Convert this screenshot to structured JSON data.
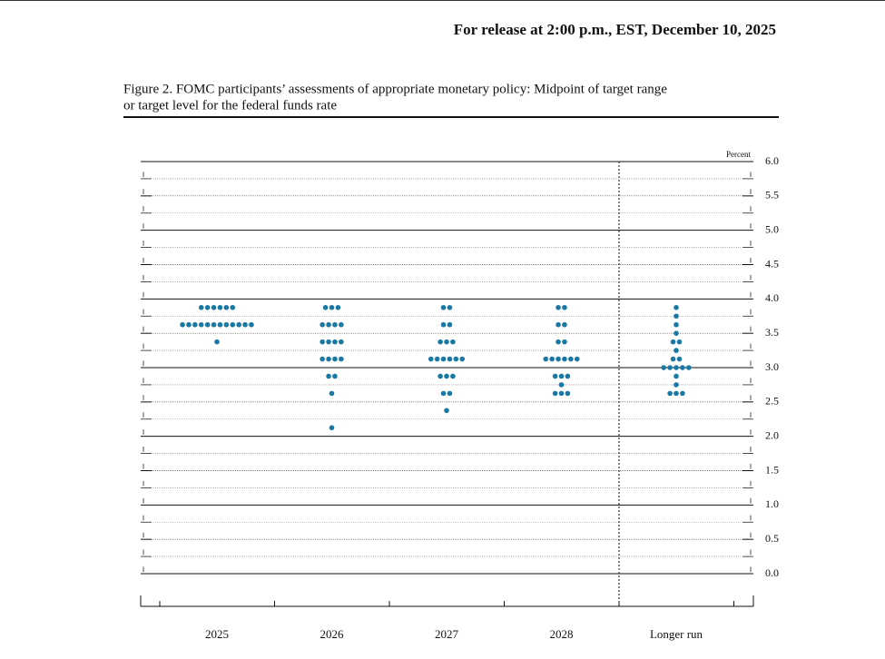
{
  "header": {
    "release": "For release at 2:00 p.m., EST, December 10, 2025"
  },
  "chart_data": {
    "type": "dot",
    "title": [
      "Figure 2. FOMC participants’ assessments of appropriate monetary policy: Midpoint of target range",
      "or target level for the federal funds rate"
    ],
    "y_label": "Percent",
    "ylim": [
      0,
      6
    ],
    "yticks": [
      {
        "value": 0,
        "label": "0.0"
      },
      0.5,
      {
        "value": 1,
        "label": "1.0"
      },
      1.5,
      {
        "value": 2,
        "label": "2.0"
      },
      2.5,
      {
        "value": 3,
        "label": "3.0"
      },
      3.5,
      {
        "value": 4,
        "label": "4.0"
      },
      4.5,
      {
        "value": 5,
        "label": "5.0"
      },
      5.5,
      {
        "value": 6,
        "label": "6.0"
      }
    ],
    "color": "#1a78a4",
    "grid": true,
    "categories": [
      "2025",
      "2026",
      "2027",
      "2028",
      "Longer run"
    ],
    "dots": [
      [
        {
          "rate": 3.875,
          "count": 6
        },
        {
          "rate": 3.625,
          "count": 12
        },
        {
          "rate": 3.375,
          "count": 1
        }
      ],
      [
        {
          "rate": 3.875,
          "count": 3
        },
        {
          "rate": 3.625,
          "count": 4
        },
        {
          "rate": 3.375,
          "count": 4
        },
        {
          "rate": 3.125,
          "count": 4
        },
        {
          "rate": 2.875,
          "count": 2
        },
        {
          "rate": 2.625,
          "count": 1
        },
        {
          "rate": 2.125,
          "count": 1
        }
      ],
      [
        {
          "rate": 3.875,
          "count": 2
        },
        {
          "rate": 3.625,
          "count": 2
        },
        {
          "rate": 3.375,
          "count": 3
        },
        {
          "rate": 3.125,
          "count": 6
        },
        {
          "rate": 2.875,
          "count": 3
        },
        {
          "rate": 2.625,
          "count": 2
        },
        {
          "rate": 2.375,
          "count": 1
        }
      ],
      [
        {
          "rate": 3.875,
          "count": 2
        },
        {
          "rate": 3.625,
          "count": 2
        },
        {
          "rate": 3.375,
          "count": 2
        },
        {
          "rate": 3.125,
          "count": 6
        },
        {
          "rate": 2.875,
          "count": 3
        },
        {
          "rate": 2.75,
          "count": 1
        },
        {
          "rate": 2.625,
          "count": 3
        }
      ],
      [
        {
          "rate": 3.875,
          "count": 1
        },
        {
          "rate": 3.75,
          "count": 1
        },
        {
          "rate": 3.625,
          "count": 1
        },
        {
          "rate": 3.5,
          "count": 1
        },
        {
          "rate": 3.375,
          "count": 2
        },
        {
          "rate": 3.25,
          "count": 1
        },
        {
          "rate": 3.125,
          "count": 2
        },
        {
          "rate": 3.0,
          "count": 5
        },
        {
          "rate": 2.875,
          "count": 1
        },
        {
          "rate": 2.75,
          "count": 1
        },
        {
          "rate": 2.625,
          "count": 3
        }
      ]
    ]
  }
}
